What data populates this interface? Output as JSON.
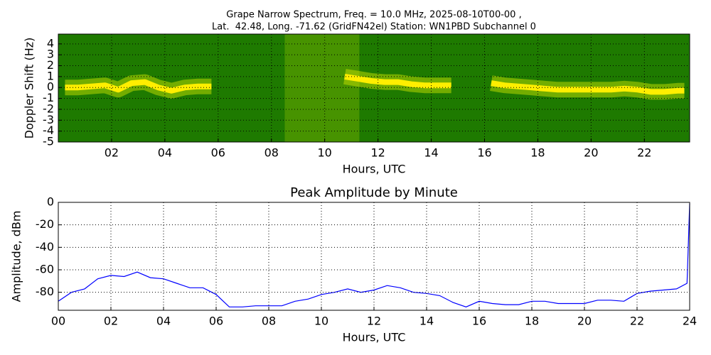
{
  "chart_data": [
    {
      "type": "spectrogram",
      "title": [
        "Grape Narrow Spectrum, Freq. = 10.0 MHz, 2025-08-10T00-00 ,",
        "Lat.  42.48, Long. -71.62 (GridFN42el) Station: WN1PBD Subchannel 0"
      ],
      "xlabel": "Hours, UTC",
      "ylabel": "Doppler Shift (Hz)",
      "x": [
        0.25,
        0.75,
        1.25,
        1.75,
        2.25,
        2.75,
        3.25,
        3.75,
        4.25,
        4.75,
        5.25,
        5.75,
        6.25,
        6.75,
        7.25,
        7.75,
        8.25,
        8.75,
        9.25,
        9.75,
        10.25,
        10.75,
        11.25,
        11.75,
        12.25,
        12.75,
        13.25,
        13.75,
        14.25,
        14.75,
        15.25,
        15.75,
        16.25,
        16.75,
        17.25,
        17.75,
        18.25,
        18.75,
        19.25,
        19.75,
        20.25,
        20.75,
        21.25,
        21.75,
        22.25,
        22.75,
        23.25,
        23.5
      ],
      "values": [
        0,
        0,
        0.1,
        0.2,
        -0.2,
        0.4,
        0.5,
        0,
        -0.3,
        0,
        0.1,
        0.1,
        null,
        null,
        null,
        null,
        null,
        null,
        null,
        null,
        null,
        1,
        0.8,
        0.6,
        0.5,
        0.5,
        0.3,
        0.2,
        0.2,
        0.2,
        null,
        null,
        0.4,
        0.2,
        0.1,
        0,
        -0.1,
        -0.2,
        -0.2,
        -0.2,
        -0.2,
        -0.2,
        -0.1,
        -0.2,
        -0.4,
        -0.4,
        -0.3,
        -0.3
      ],
      "color": "#ffee00",
      "background": "#1e7a00",
      "xlim": [
        0,
        23.7
      ],
      "ylim": [
        -5,
        4.9
      ],
      "xticks": [
        {
          "value": 2,
          "label": "02"
        },
        {
          "value": 4,
          "label": "04"
        },
        {
          "value": 6,
          "label": "06"
        },
        {
          "value": 8,
          "label": "08"
        },
        {
          "value": 10,
          "label": "10"
        },
        {
          "value": 12,
          "label": "12"
        },
        {
          "value": 14,
          "label": "14"
        },
        {
          "value": 16,
          "label": "16"
        },
        {
          "value": 18,
          "label": "18"
        },
        {
          "value": 20,
          "label": "20"
        },
        {
          "value": 22,
          "label": "22"
        }
      ],
      "yticks": [
        4,
        3,
        2,
        1,
        0,
        -1,
        -2,
        -3,
        -4,
        -5
      ],
      "grid": true
    },
    {
      "type": "line",
      "title": "Peak Amplitude by Minute",
      "xlabel": "Hours, UTC",
      "ylabel": "Amplitude, dBm",
      "x": [
        0,
        0.5,
        1,
        1.5,
        2,
        2.5,
        3,
        3.5,
        4,
        4.5,
        5,
        5.5,
        6,
        6.5,
        7,
        7.5,
        8,
        8.5,
        9,
        9.5,
        10,
        10.5,
        11,
        11.5,
        12,
        12.5,
        13,
        13.5,
        14,
        14.5,
        15,
        15.5,
        16,
        16.5,
        17,
        17.5,
        18,
        18.5,
        19,
        19.5,
        20,
        20.5,
        21,
        21.5,
        22,
        22.5,
        23,
        23.5,
        23.9,
        24
      ],
      "values": [
        -88,
        -80,
        -77,
        -68,
        -65,
        -66,
        -62,
        -67,
        -68,
        -72,
        -76,
        -76,
        -82,
        -93,
        -93,
        -92,
        -92,
        -92,
        -88,
        -86,
        -82,
        -80,
        -77,
        -80,
        -78,
        -74,
        -76,
        -80,
        -81,
        -83,
        -89,
        -93,
        -88,
        -90,
        -91,
        -91,
        -88,
        -88,
        -90,
        -90,
        -90,
        -87,
        -87,
        -88,
        -81,
        -79,
        -78,
        -77,
        -72,
        -1
      ],
      "color": "#0000ff",
      "xlim": [
        0,
        24
      ],
      "ylim": [
        -96,
        0
      ],
      "xticks": [
        {
          "value": 0,
          "label": "00"
        },
        {
          "value": 2,
          "label": "02"
        },
        {
          "value": 4,
          "label": "04"
        },
        {
          "value": 6,
          "label": "06"
        },
        {
          "value": 8,
          "label": "08"
        },
        {
          "value": 10,
          "label": "10"
        },
        {
          "value": 12,
          "label": "12"
        },
        {
          "value": 14,
          "label": "14"
        },
        {
          "value": 16,
          "label": "16"
        },
        {
          "value": 18,
          "label": "18"
        },
        {
          "value": 20,
          "label": "20"
        },
        {
          "value": 22,
          "label": "22"
        },
        {
          "value": 24,
          "label": "24"
        }
      ],
      "yticks": [
        0,
        -20,
        -40,
        -60,
        -80
      ],
      "grid": true
    }
  ]
}
